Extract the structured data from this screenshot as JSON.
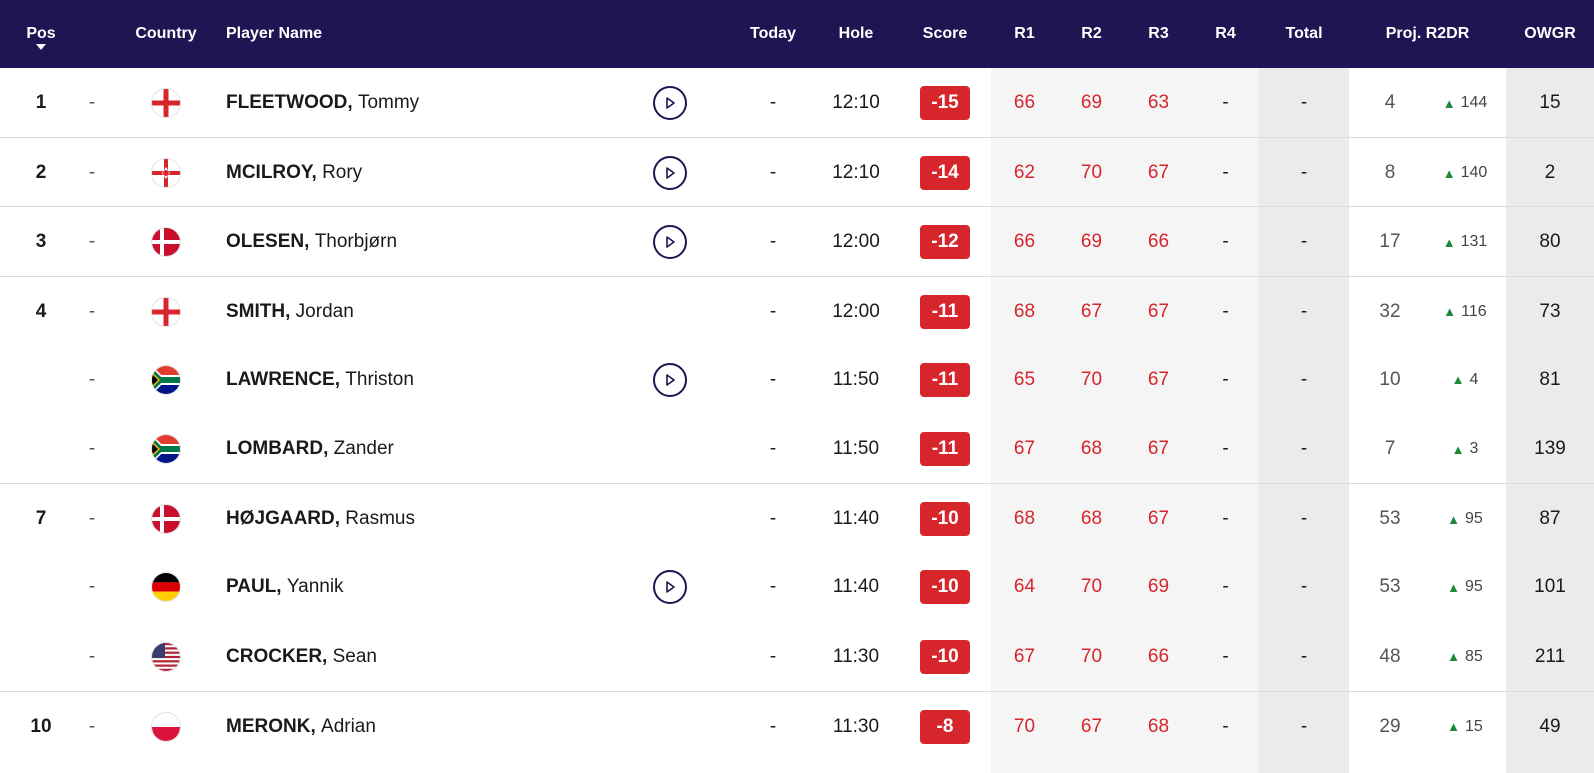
{
  "header": {
    "pos": "Pos",
    "country": "Country",
    "player_name": "Player Name",
    "today": "Today",
    "hole": "Hole",
    "score": "Score",
    "r1": "R1",
    "r2": "R2",
    "r3": "R3",
    "r4": "R4",
    "total": "Total",
    "proj": "Proj. R2DR",
    "owgr": "OWGR"
  },
  "colors": {
    "header_bg": "#1e1552",
    "score_red": "#d7252c",
    "up_arrow": "#1a8a3a"
  },
  "players": [
    {
      "pos": "1",
      "move": "-",
      "country": "england",
      "surname": "FLEETWOOD,",
      "firstname": "Tommy",
      "video": true,
      "today": "-",
      "hole": "12:10",
      "score": "-15",
      "r1": "66",
      "r2": "69",
      "r3": "63",
      "r4": "-",
      "total": "-",
      "proj": "4",
      "proj_move": "144",
      "owgr": "15"
    },
    {
      "pos": "2",
      "move": "-",
      "country": "northern-ireland",
      "surname": "MCILROY,",
      "firstname": "Rory",
      "video": true,
      "today": "-",
      "hole": "12:10",
      "score": "-14",
      "r1": "62",
      "r2": "70",
      "r3": "67",
      "r4": "-",
      "total": "-",
      "proj": "8",
      "proj_move": "140",
      "owgr": "2"
    },
    {
      "pos": "3",
      "move": "-",
      "country": "denmark",
      "surname": "OLESEN,",
      "firstname": "Thorbjørn",
      "video": true,
      "today": "-",
      "hole": "12:00",
      "score": "-12",
      "r1": "66",
      "r2": "69",
      "r3": "66",
      "r4": "-",
      "total": "-",
      "proj": "17",
      "proj_move": "131",
      "owgr": "80"
    },
    {
      "pos": "4",
      "move": "-",
      "country": "england",
      "surname": "SMITH,",
      "firstname": "Jordan",
      "video": false,
      "today": "-",
      "hole": "12:00",
      "score": "-11",
      "r1": "68",
      "r2": "67",
      "r3": "67",
      "r4": "-",
      "total": "-",
      "proj": "32",
      "proj_move": "116",
      "owgr": "73"
    },
    {
      "pos": "",
      "move": "-",
      "country": "south-africa",
      "surname": "LAWRENCE,",
      "firstname": "Thriston",
      "video": true,
      "today": "-",
      "hole": "11:50",
      "score": "-11",
      "r1": "65",
      "r2": "70",
      "r3": "67",
      "r4": "-",
      "total": "-",
      "proj": "10",
      "proj_move": "4",
      "owgr": "81"
    },
    {
      "pos": "",
      "move": "-",
      "country": "south-africa",
      "surname": "LOMBARD,",
      "firstname": "Zander",
      "video": false,
      "today": "-",
      "hole": "11:50",
      "score": "-11",
      "r1": "67",
      "r2": "68",
      "r3": "67",
      "r4": "-",
      "total": "-",
      "proj": "7",
      "proj_move": "3",
      "owgr": "139"
    },
    {
      "pos": "7",
      "move": "-",
      "country": "denmark",
      "surname": "HØJGAARD,",
      "firstname": "Rasmus",
      "video": false,
      "today": "-",
      "hole": "11:40",
      "score": "-10",
      "r1": "68",
      "r2": "68",
      "r3": "67",
      "r4": "-",
      "total": "-",
      "proj": "53",
      "proj_move": "95",
      "owgr": "87"
    },
    {
      "pos": "",
      "move": "-",
      "country": "germany",
      "surname": "PAUL,",
      "firstname": "Yannik",
      "video": true,
      "today": "-",
      "hole": "11:40",
      "score": "-10",
      "r1": "64",
      "r2": "70",
      "r3": "69",
      "r4": "-",
      "total": "-",
      "proj": "53",
      "proj_move": "95",
      "owgr": "101"
    },
    {
      "pos": "",
      "move": "-",
      "country": "usa",
      "surname": "CROCKER,",
      "firstname": "Sean",
      "video": false,
      "today": "-",
      "hole": "11:30",
      "score": "-10",
      "r1": "67",
      "r2": "70",
      "r3": "66",
      "r4": "-",
      "total": "-",
      "proj": "48",
      "proj_move": "85",
      "owgr": "211"
    },
    {
      "pos": "10",
      "move": "-",
      "country": "poland",
      "surname": "MERONK,",
      "firstname": "Adrian",
      "video": false,
      "today": "-",
      "hole": "11:30",
      "score": "-8",
      "r1": "70",
      "r2": "67",
      "r3": "68",
      "r4": "-",
      "total": "-",
      "proj": "29",
      "proj_move": "15",
      "owgr": "49"
    }
  ]
}
